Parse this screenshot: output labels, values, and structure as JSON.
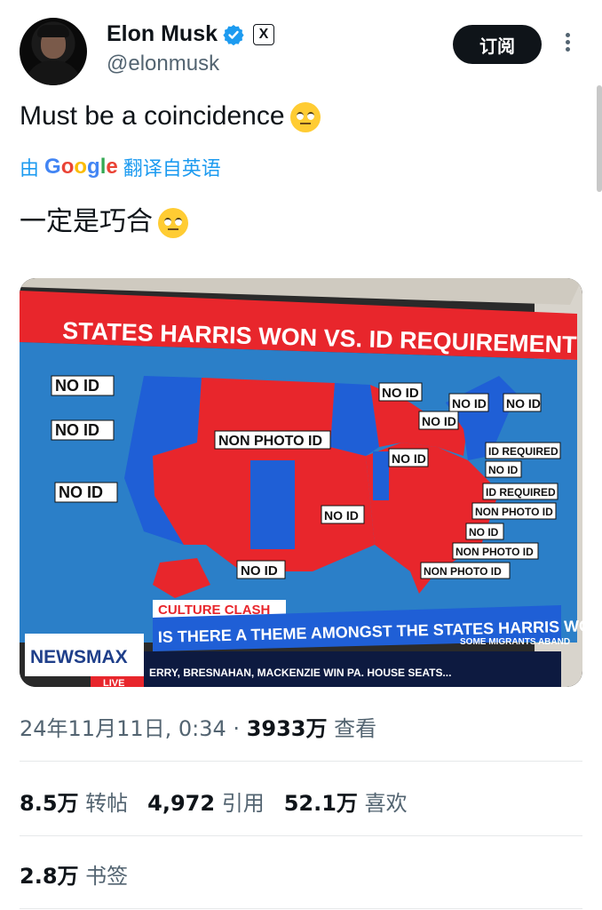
{
  "author": {
    "name": "Elon Musk",
    "handle": "@elonmusk"
  },
  "actions": {
    "subscribe_label": "订阅"
  },
  "tweet": {
    "text": "Must be a coincidence",
    "translated_prefix": "由",
    "translated_brand": "Google",
    "translated_suffix": "翻译自英语",
    "translation": "一定是巧合"
  },
  "media": {
    "headline": "STATES HARRIS WON VS. ID REQUIREMENT",
    "labels": [
      "NO ID",
      "NO ID",
      "NO ID",
      "NON PHOTO ID",
      "NO ID",
      "NO ID",
      "NO ID",
      "NO ID",
      "NO ID",
      "ID REQUIRED",
      "NO ID",
      "ID REQUIRED",
      "NON PHOTO ID",
      "NO ID",
      "NO ID",
      "NON PHOTO ID",
      "NO ID",
      "NON PHOTO ID"
    ],
    "segment": "CULTURE CLASH",
    "network": "NEWSMAX",
    "question": "IS THERE A THEME AMONGST THE STATES HARRIS WON?",
    "ticker": "ERRY, BRESNAHAN, MACKENZIE WIN PA. HOUSE SEATS...",
    "ticker_right": "SOME MIGRANTS ABAND",
    "live": "LIVE"
  },
  "meta": {
    "date": "24年11月11日, 0:34",
    "sep": "·",
    "views": "3933万",
    "views_label": "查看"
  },
  "stats": {
    "retweets": "8.5万",
    "retweets_label": "转帖",
    "quotes": "4,972",
    "quotes_label": "引用",
    "likes": "52.1万",
    "likes_label": "喜欢",
    "bookmarks": "2.8万",
    "bookmarks_label": "书签"
  },
  "colors": {
    "accent": "#1d9bf0",
    "red": "#e8262c",
    "blue": "#1f5fd6"
  }
}
